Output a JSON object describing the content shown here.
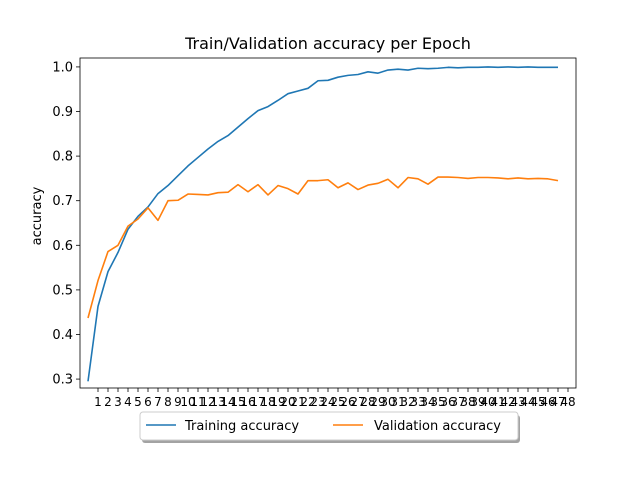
{
  "chart_data": {
    "type": "line",
    "title": "Train/Validation accuracy per Epoch",
    "xlabel": "",
    "ylabel": "accuracy",
    "x_ticks": [
      "1",
      "2",
      "3",
      "4",
      "5",
      "6",
      "7",
      "8",
      "9",
      "10",
      "11",
      "12",
      "13",
      "14",
      "15",
      "16",
      "17",
      "18",
      "19",
      "20",
      "21",
      "22",
      "23",
      "24",
      "25",
      "26",
      "27",
      "28",
      "29",
      "30",
      "31",
      "32",
      "33",
      "34",
      "35",
      "36",
      "37",
      "38",
      "39",
      "40",
      "41",
      "42",
      "43",
      "44",
      "45",
      "46",
      "47",
      "48"
    ],
    "xlim": [
      0,
      48
    ],
    "ylim": [
      0.28,
      1.02
    ],
    "y_ticks": [
      0.3,
      0.4,
      0.5,
      0.6,
      0.7,
      0.8,
      0.9,
      1.0
    ],
    "y_tick_labels": [
      "0.3",
      "0.4",
      "0.5",
      "0.6",
      "0.7",
      "0.8",
      "0.9",
      "1.0"
    ],
    "grid": false,
    "legend_position": "bottom-center",
    "x": [
      0,
      1,
      2,
      3,
      4,
      5,
      6,
      7,
      8,
      9,
      10,
      11,
      12,
      13,
      14,
      15,
      16,
      17,
      18,
      19,
      20,
      21,
      22,
      23,
      24,
      25,
      26,
      27,
      28,
      29,
      30,
      31,
      32,
      33,
      34,
      35,
      36,
      37,
      38,
      39,
      40,
      41,
      42,
      43,
      44,
      45,
      46,
      47
    ],
    "series": [
      {
        "name": "Training accuracy",
        "color": "#1f77b4",
        "values": [
          0.295,
          0.463,
          0.541,
          0.584,
          0.636,
          0.665,
          0.686,
          0.716,
          0.734,
          0.756,
          0.778,
          0.797,
          0.816,
          0.833,
          0.846,
          0.865,
          0.884,
          0.902,
          0.911,
          0.925,
          0.94,
          0.946,
          0.952,
          0.969,
          0.97,
          0.977,
          0.981,
          0.983,
          0.989,
          0.986,
          0.993,
          0.995,
          0.993,
          0.997,
          0.996,
          0.997,
          0.999,
          0.998,
          0.999,
          0.999,
          1.0,
          0.999,
          1.0,
          0.999,
          1.0,
          0.999,
          0.999,
          0.999
        ]
      },
      {
        "name": "Validation accuracy",
        "color": "#ff7f0e",
        "values": [
          0.437,
          0.521,
          0.586,
          0.6,
          0.643,
          0.659,
          0.684,
          0.656,
          0.7,
          0.701,
          0.715,
          0.714,
          0.713,
          0.718,
          0.719,
          0.736,
          0.72,
          0.736,
          0.713,
          0.734,
          0.727,
          0.715,
          0.745,
          0.745,
          0.747,
          0.729,
          0.74,
          0.725,
          0.735,
          0.739,
          0.748,
          0.729,
          0.752,
          0.749,
          0.737,
          0.753,
          0.753,
          0.752,
          0.75,
          0.752,
          0.752,
          0.751,
          0.749,
          0.751,
          0.749,
          0.75,
          0.749,
          0.745
        ]
      }
    ]
  }
}
